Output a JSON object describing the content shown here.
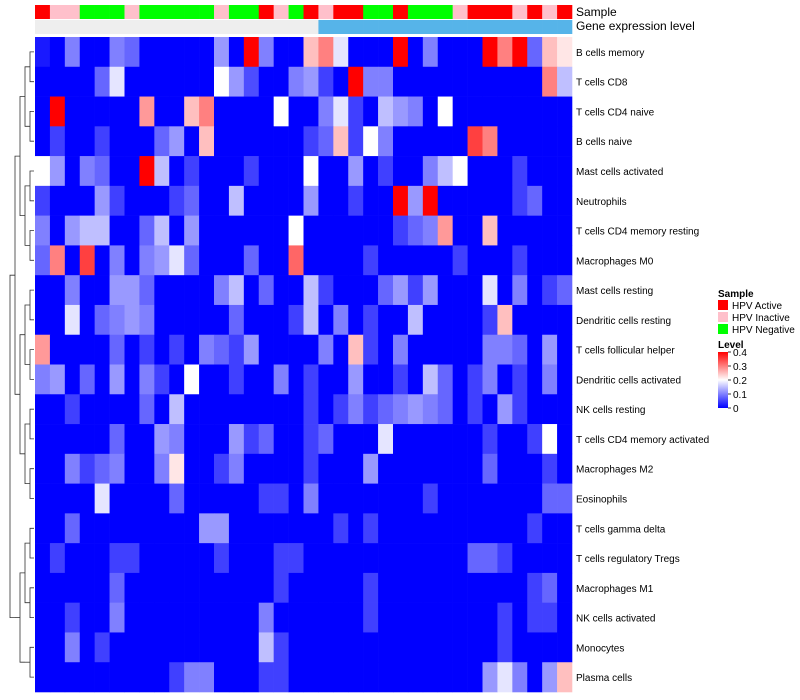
{
  "chart_data": {
    "type": "heatmap",
    "annotation_tracks": [
      {
        "name": "Sample",
        "values": [
          "HPV Active",
          "HPV Inactive",
          "HPV Inactive",
          "HPV Negative",
          "HPV Negative",
          "HPV Negative",
          "HPV Inactive",
          "HPV Negative",
          "HPV Negative",
          "HPV Negative",
          "HPV Negative",
          "HPV Negative",
          "HPV Inactive",
          "HPV Negative",
          "HPV Negative",
          "HPV Active",
          "HPV Inactive",
          "HPV Negative",
          "HPV Active",
          "HPV Inactive",
          "HPV Active",
          "HPV Active",
          "HPV Negative",
          "HPV Negative",
          "HPV Active",
          "HPV Negative",
          "HPV Negative",
          "HPV Negative",
          "HPV Inactive",
          "HPV Active",
          "HPV Active",
          "HPV Active",
          "HPV Inactive",
          "HPV Active",
          "HPV Inactive",
          "HPV Active"
        ]
      },
      {
        "name": "Gene expression level",
        "values": [
          "low",
          "low",
          "low",
          "low",
          "low",
          "low",
          "low",
          "low",
          "low",
          "low",
          "low",
          "low",
          "low",
          "low",
          "low",
          "low",
          "low",
          "low",
          "low",
          "high",
          "high",
          "high",
          "high",
          "high",
          "high",
          "high",
          "high",
          "high",
          "high",
          "high",
          "high",
          "high",
          "high",
          "high",
          "high",
          "high"
        ]
      }
    ],
    "rows": [
      "B cells memory",
      "T cells CD8",
      "T cells CD4 naive",
      "B cells naive",
      "Mast cells activated",
      "Neutrophils",
      "T cells CD4 memory resting",
      "Macrophages M0",
      "Mast cells resting",
      "Dendritic cells resting",
      "T cells follicular helper",
      "Dendritic cells activated",
      "NK cells resting",
      "T cells CD4 memory activated",
      "Macrophages M2",
      "Eosinophils",
      "T cells gamma delta",
      "T cells regulatory  Tregs",
      "Macrophages M1",
      "NK cells activated",
      "Monocytes",
      "Plasma cells"
    ],
    "n_samples": 36,
    "values": [
      [
        0.02,
        0.0,
        0.1,
        0.0,
        0.0,
        0.1,
        0.08,
        0.0,
        0.0,
        0.0,
        0.0,
        0.0,
        0.12,
        0.0,
        0.4,
        0.1,
        0.0,
        0.0,
        0.25,
        0.3,
        0.18,
        0.0,
        0.0,
        0.0,
        0.4,
        0.0,
        0.1,
        0.0,
        0.0,
        0.0,
        0.4,
        0.3,
        0.4,
        0.08,
        0.25,
        0.22
      ],
      [
        0.0,
        0.0,
        0.0,
        0.0,
        0.08,
        0.18,
        0.0,
        0.0,
        0.0,
        0.0,
        0.0,
        0.0,
        0.2,
        0.12,
        0.06,
        0.0,
        0.0,
        0.1,
        0.12,
        0.05,
        0.0,
        0.4,
        0.1,
        0.1,
        0.0,
        0.0,
        0.0,
        0.0,
        0.0,
        0.0,
        0.0,
        0.0,
        0.0,
        0.0,
        0.3,
        0.15
      ],
      [
        0.0,
        0.4,
        0.0,
        0.0,
        0.0,
        0.0,
        0.0,
        0.28,
        0.0,
        0.0,
        0.25,
        0.3,
        0.0,
        0.0,
        0.0,
        0.0,
        0.2,
        0.0,
        0.0,
        0.1,
        0.18,
        0.05,
        0.0,
        0.15,
        0.12,
        0.1,
        0.0,
        0.2,
        0.0,
        0.0,
        0.0,
        0.0,
        0.0,
        0.0,
        0.0,
        0.0
      ],
      [
        0.0,
        0.05,
        0.0,
        0.0,
        0.05,
        0.0,
        0.0,
        0.0,
        0.08,
        0.12,
        0.0,
        0.25,
        0.0,
        0.0,
        0.0,
        0.0,
        0.0,
        0.0,
        0.05,
        0.08,
        0.25,
        0.05,
        0.2,
        0.1,
        0.0,
        0.0,
        0.0,
        0.0,
        0.0,
        0.35,
        0.3,
        0.0,
        0.0,
        0.0,
        0.0,
        0.0
      ],
      [
        0.2,
        0.12,
        0.0,
        0.1,
        0.08,
        0.0,
        0.0,
        0.4,
        0.15,
        0.0,
        0.05,
        0.0,
        0.0,
        0.0,
        0.05,
        0.0,
        0.0,
        0.0,
        0.2,
        0.0,
        0.0,
        0.12,
        0.0,
        0.05,
        0.0,
        0.0,
        0.1,
        0.15,
        0.2,
        0.0,
        0.0,
        0.0,
        0.05,
        0.0,
        0.0,
        0.0
      ],
      [
        0.05,
        0.0,
        0.0,
        0.0,
        0.12,
        0.05,
        0.0,
        0.0,
        0.0,
        0.05,
        0.08,
        0.0,
        0.0,
        0.15,
        0.0,
        0.0,
        0.0,
        0.0,
        0.12,
        0.0,
        0.0,
        0.05,
        0.0,
        0.0,
        0.4,
        0.12,
        0.4,
        0.0,
        0.0,
        0.0,
        0.0,
        0.0,
        0.05,
        0.08,
        0.0,
        0.0
      ],
      [
        0.1,
        0.0,
        0.12,
        0.15,
        0.15,
        0.0,
        0.0,
        0.08,
        0.15,
        0.0,
        0.12,
        0.0,
        0.0,
        0.0,
        0.0,
        0.0,
        0.0,
        0.2,
        0.0,
        0.0,
        0.0,
        0.0,
        0.0,
        0.0,
        0.05,
        0.08,
        0.1,
        0.28,
        0.0,
        0.0,
        0.25,
        0.0,
        0.0,
        0.0,
        0.0,
        0.0
      ],
      [
        0.08,
        0.3,
        0.0,
        0.35,
        0.0,
        0.1,
        0.0,
        0.1,
        0.12,
        0.18,
        0.08,
        0.0,
        0.0,
        0.0,
        0.08,
        0.0,
        0.0,
        0.32,
        0.0,
        0.0,
        0.0,
        0.0,
        0.05,
        0.0,
        0.0,
        0.0,
        0.0,
        0.0,
        0.05,
        0.0,
        0.0,
        0.0,
        0.05,
        0.0,
        0.0,
        0.0
      ],
      [
        0.0,
        0.0,
        0.1,
        0.0,
        0.0,
        0.12,
        0.12,
        0.08,
        0.0,
        0.0,
        0.0,
        0.0,
        0.1,
        0.15,
        0.0,
        0.08,
        0.0,
        0.0,
        0.15,
        0.05,
        0.0,
        0.0,
        0.0,
        0.08,
        0.12,
        0.05,
        0.12,
        0.0,
        0.0,
        0.0,
        0.18,
        0.0,
        0.1,
        0.0,
        0.05,
        0.08
      ],
      [
        0.0,
        0.0,
        0.18,
        0.0,
        0.08,
        0.1,
        0.12,
        0.1,
        0.0,
        0.0,
        0.0,
        0.0,
        0.0,
        0.08,
        0.0,
        0.0,
        0.0,
        0.05,
        0.15,
        0.0,
        0.1,
        0.0,
        0.05,
        0.0,
        0.0,
        0.15,
        0.0,
        0.0,
        0.0,
        0.0,
        0.05,
        0.25,
        0.0,
        0.0,
        0.0,
        0.0
      ],
      [
        0.28,
        0.0,
        0.0,
        0.0,
        0.0,
        0.08,
        0.0,
        0.05,
        0.0,
        0.05,
        0.0,
        0.1,
        0.08,
        0.05,
        0.12,
        0.0,
        0.0,
        0.0,
        0.0,
        0.1,
        0.0,
        0.25,
        0.05,
        0.0,
        0.1,
        0.0,
        0.0,
        0.0,
        0.0,
        0.0,
        0.1,
        0.1,
        0.08,
        0.0,
        0.12,
        0.0
      ],
      [
        0.1,
        0.12,
        0.0,
        0.08,
        0.0,
        0.12,
        0.0,
        0.1,
        0.05,
        0.0,
        0.2,
        0.0,
        0.0,
        0.05,
        0.0,
        0.0,
        0.1,
        0.0,
        0.05,
        0.0,
        0.0,
        0.12,
        0.0,
        0.0,
        0.05,
        0.0,
        0.15,
        0.08,
        0.0,
        0.05,
        0.1,
        0.0,
        0.05,
        0.0,
        0.1,
        0.0
      ],
      [
        0.0,
        0.0,
        0.05,
        0.0,
        0.0,
        0.0,
        0.0,
        0.08,
        0.0,
        0.15,
        0.0,
        0.0,
        0.0,
        0.0,
        0.0,
        0.0,
        0.0,
        0.0,
        0.05,
        0.0,
        0.05,
        0.1,
        0.05,
        0.08,
        0.1,
        0.12,
        0.1,
        0.08,
        0.0,
        0.05,
        0.0,
        0.12,
        0.05,
        0.0,
        0.0,
        0.0
      ],
      [
        0.0,
        0.0,
        0.0,
        0.0,
        0.0,
        0.08,
        0.0,
        0.0,
        0.12,
        0.1,
        0.0,
        0.0,
        0.0,
        0.12,
        0.05,
        0.08,
        0.0,
        0.0,
        0.05,
        0.08,
        0.0,
        0.0,
        0.0,
        0.18,
        0.0,
        0.0,
        0.0,
        0.0,
        0.0,
        0.0,
        0.05,
        0.0,
        0.0,
        0.05,
        0.2,
        0.0
      ],
      [
        0.0,
        0.0,
        0.1,
        0.05,
        0.08,
        0.1,
        0.0,
        0.0,
        0.1,
        0.22,
        0.0,
        0.0,
        0.05,
        0.1,
        0.0,
        0.0,
        0.0,
        0.0,
        0.05,
        0.0,
        0.0,
        0.0,
        0.12,
        0.0,
        0.0,
        0.0,
        0.0,
        0.0,
        0.0,
        0.0,
        0.08,
        0.0,
        0.0,
        0.0,
        0.05,
        0.0
      ],
      [
        0.0,
        0.0,
        0.0,
        0.0,
        0.18,
        0.0,
        0.0,
        0.0,
        0.0,
        0.08,
        0.0,
        0.0,
        0.0,
        0.0,
        0.0,
        0.05,
        0.05,
        0.0,
        0.1,
        0.0,
        0.0,
        0.0,
        0.0,
        0.0,
        0.0,
        0.0,
        0.05,
        0.0,
        0.0,
        0.0,
        0.0,
        0.0,
        0.0,
        0.0,
        0.08,
        0.08
      ],
      [
        0.0,
        0.0,
        0.08,
        0.0,
        0.0,
        0.0,
        0.0,
        0.0,
        0.0,
        0.0,
        0.0,
        0.12,
        0.12,
        0.0,
        0.0,
        0.0,
        0.0,
        0.0,
        0.0,
        0.0,
        0.05,
        0.0,
        0.05,
        0.0,
        0.0,
        0.0,
        0.0,
        0.0,
        0.0,
        0.0,
        0.0,
        0.0,
        0.0,
        0.05,
        0.0,
        0.0
      ],
      [
        0.0,
        0.05,
        0.0,
        0.0,
        0.0,
        0.05,
        0.05,
        0.0,
        0.0,
        0.0,
        0.0,
        0.0,
        0.05,
        0.0,
        0.0,
        0.0,
        0.05,
        0.05,
        0.0,
        0.0,
        0.0,
        0.0,
        0.0,
        0.0,
        0.0,
        0.0,
        0.0,
        0.0,
        0.0,
        0.08,
        0.08,
        0.05,
        0.0,
        0.0,
        0.0,
        0.0
      ],
      [
        0.0,
        0.0,
        0.0,
        0.0,
        0.0,
        0.08,
        0.0,
        0.0,
        0.0,
        0.0,
        0.0,
        0.0,
        0.0,
        0.0,
        0.0,
        0.0,
        0.05,
        0.0,
        0.0,
        0.0,
        0.0,
        0.0,
        0.05,
        0.0,
        0.0,
        0.0,
        0.0,
        0.0,
        0.0,
        0.0,
        0.0,
        0.0,
        0.0,
        0.05,
        0.08,
        0.0
      ],
      [
        0.0,
        0.0,
        0.05,
        0.0,
        0.0,
        0.1,
        0.0,
        0.0,
        0.0,
        0.0,
        0.0,
        0.0,
        0.0,
        0.0,
        0.0,
        0.1,
        0.0,
        0.0,
        0.0,
        0.0,
        0.0,
        0.0,
        0.05,
        0.0,
        0.0,
        0.0,
        0.0,
        0.0,
        0.0,
        0.0,
        0.0,
        0.05,
        0.0,
        0.05,
        0.05,
        0.0
      ],
      [
        0.0,
        0.0,
        0.1,
        0.0,
        0.05,
        0.0,
        0.0,
        0.0,
        0.0,
        0.0,
        0.0,
        0.0,
        0.0,
        0.0,
        0.0,
        0.15,
        0.05,
        0.0,
        0.0,
        0.0,
        0.0,
        0.0,
        0.0,
        0.0,
        0.0,
        0.0,
        0.0,
        0.0,
        0.0,
        0.0,
        0.0,
        0.05,
        0.0,
        0.0,
        0.0,
        0.0
      ],
      [
        0.0,
        0.0,
        0.0,
        0.0,
        0.0,
        0.0,
        0.0,
        0.0,
        0.0,
        0.05,
        0.1,
        0.1,
        0.0,
        0.0,
        0.0,
        0.05,
        0.05,
        0.0,
        0.0,
        0.0,
        0.0,
        0.0,
        0.0,
        0.0,
        0.0,
        0.0,
        0.0,
        0.0,
        0.0,
        0.0,
        0.12,
        0.18,
        0.1,
        0.0,
        0.12,
        0.25
      ]
    ],
    "color_scale": {
      "min": 0,
      "mid": 0.2,
      "max": 0.4,
      "low_color": "#0000FF",
      "mid_color": "#FFFFFF",
      "high_color": "#FF0000"
    },
    "sample_colors": {
      "HPV Active": "#FF0000",
      "HPV Inactive": "#FFC0CB",
      "HPV Negative": "#00FF00"
    },
    "gene_colors": {
      "low": "#EEEEEE",
      "high": "#56B4E9"
    },
    "legend": {
      "sample_title": "Sample",
      "sample_entries": [
        "HPV Active",
        "HPV Inactive",
        "HPV Negative"
      ],
      "level_title": "Level",
      "level_ticks": [
        "0.4",
        "0.3",
        "0.2",
        "0.1",
        "0"
      ],
      "placement": "right"
    },
    "dendrogram": "rows"
  }
}
